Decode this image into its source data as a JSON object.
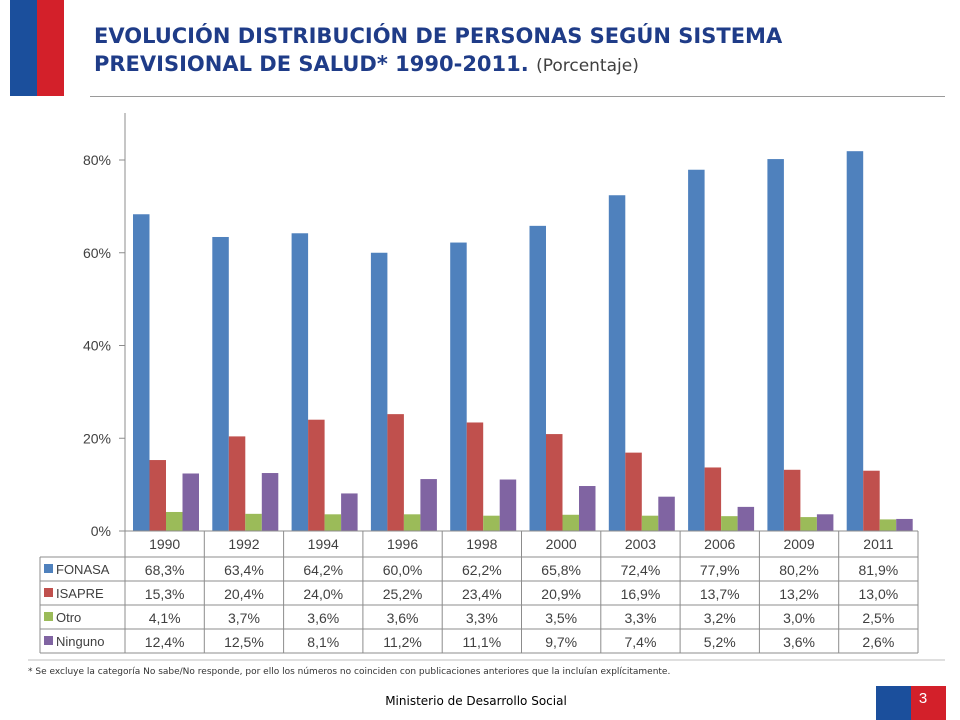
{
  "header": {
    "title": "EVOLUCIÓN DISTRIBUCIÓN DE PERSONAS SEGÚN SISTEMA PREVISIONAL DE SALUD* 1990-2011.",
    "subtitle": "(Porcentaje)"
  },
  "footer": {
    "footnote": "* Se excluye la categoría No sabe/No responde, por ello los números no coinciden con publicaciones anteriores que la incluían explícitamente.",
    "ministry": "Ministerio de Desarrollo Social",
    "page_number": "3"
  },
  "colors": {
    "brand_blue": "#1b4f9c",
    "brand_red": "#d3202a",
    "title": "#1f3c88"
  },
  "chart_data": {
    "type": "bar",
    "categories": [
      "1990",
      "1992",
      "1994",
      "1996",
      "1998",
      "2000",
      "2003",
      "2006",
      "2009",
      "2011"
    ],
    "ylim": [
      0,
      90
    ],
    "yticks": [
      0,
      20,
      40,
      60,
      80
    ],
    "ytick_labels": [
      "0%",
      "20%",
      "40%",
      "60%",
      "80%"
    ],
    "grid": false,
    "legend": "data-table",
    "series": [
      {
        "name": "FONASA",
        "color": "#4f81bd",
        "values": [
          68.3,
          63.4,
          64.2,
          60.0,
          62.2,
          65.8,
          72.4,
          77.9,
          80.2,
          81.9
        ],
        "labels": [
          "68,3%",
          "63,4%",
          "64,2%",
          "60,0%",
          "62,2%",
          "65,8%",
          "72,4%",
          "77,9%",
          "80,2%",
          "81,9%"
        ]
      },
      {
        "name": "ISAPRE",
        "color": "#c0504d",
        "values": [
          15.3,
          20.4,
          24.0,
          25.2,
          23.4,
          20.9,
          16.9,
          13.7,
          13.2,
          13.0
        ],
        "labels": [
          "15,3%",
          "20,4%",
          "24,0%",
          "25,2%",
          "23,4%",
          "20,9%",
          "16,9%",
          "13,7%",
          "13,2%",
          "13,0%"
        ]
      },
      {
        "name": "Otro",
        "color": "#9bbb59",
        "values": [
          4.1,
          3.7,
          3.6,
          3.6,
          3.3,
          3.5,
          3.3,
          3.2,
          3.0,
          2.5
        ],
        "labels": [
          "4,1%",
          "3,7%",
          "3,6%",
          "3,6%",
          "3,3%",
          "3,5%",
          "3,3%",
          "3,2%",
          "3,0%",
          "2,5%"
        ]
      },
      {
        "name": "Ninguno",
        "color": "#8064a2",
        "values": [
          12.4,
          12.5,
          8.1,
          11.2,
          11.1,
          9.7,
          7.4,
          5.2,
          3.6,
          2.6
        ],
        "labels": [
          "12,4%",
          "12,5%",
          "8,1%",
          "11,2%",
          "11,1%",
          "9,7%",
          "7,4%",
          "5,2%",
          "3,6%",
          "2,6%"
        ]
      }
    ]
  }
}
